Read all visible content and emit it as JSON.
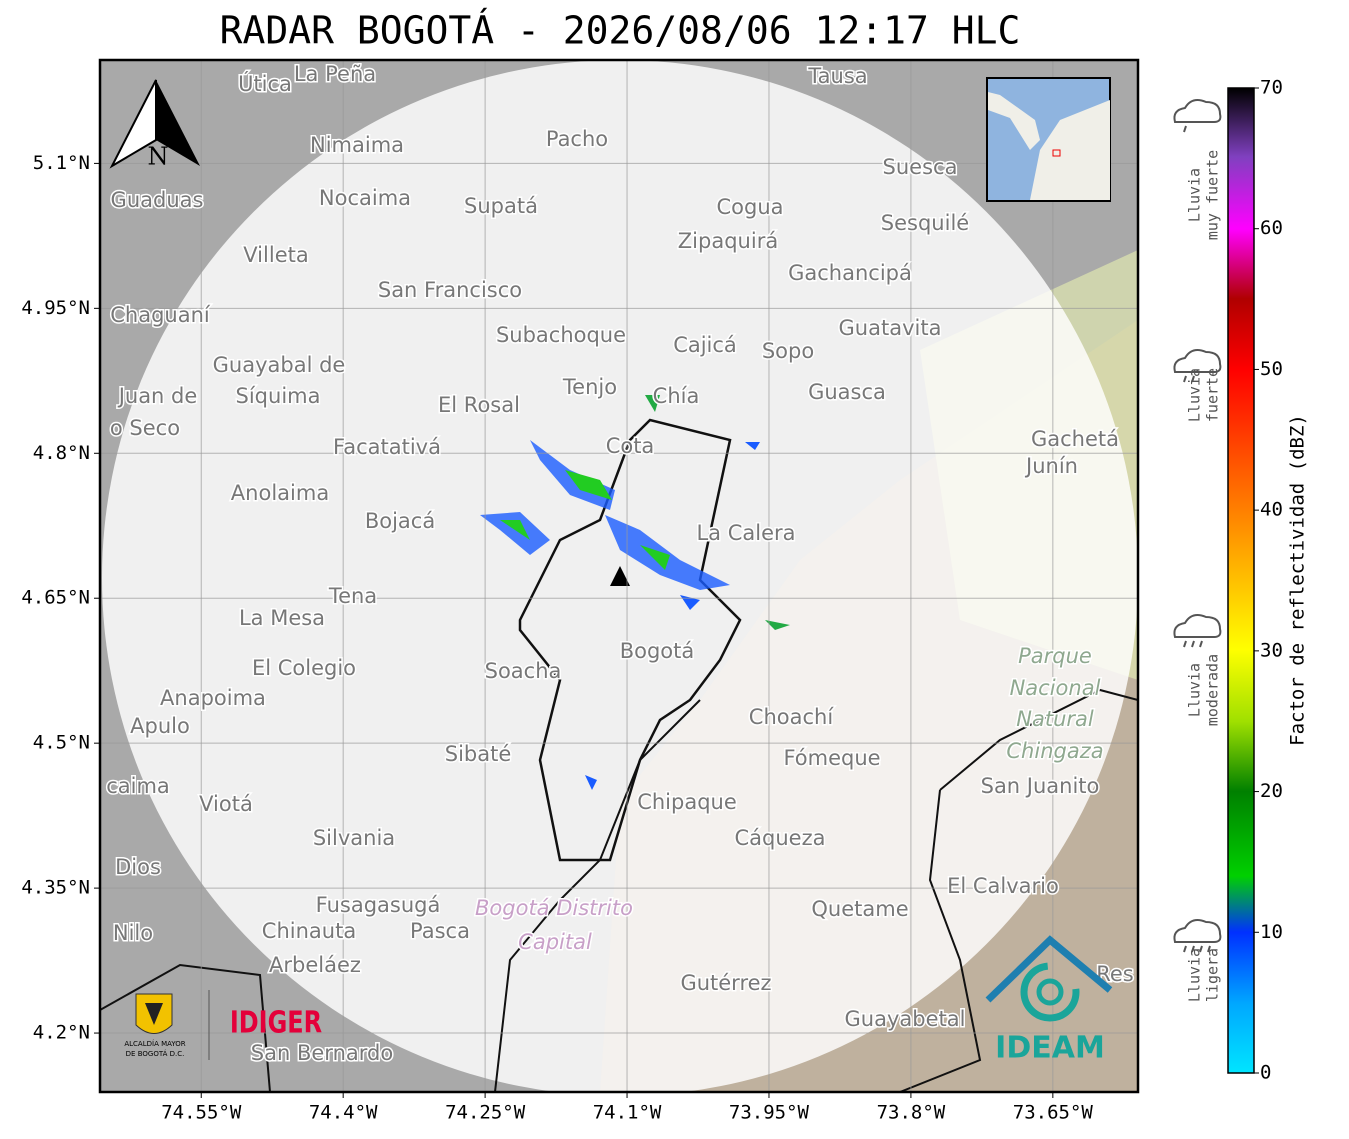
{
  "map": {
    "title": "RADAR BOGOTÁ - 2026/08/06 12:17 HLC",
    "lat_range": [
      4.139,
      5.207
    ],
    "lon_range": [
      -74.657,
      -73.56
    ],
    "lat_ticks": [
      {
        "value": 4.2,
        "label": "4.2°N"
      },
      {
        "value": 4.35,
        "label": "4.35°N"
      },
      {
        "value": 4.5,
        "label": "4.5°N"
      },
      {
        "value": 4.65,
        "label": "4.65°N"
      },
      {
        "value": 4.8,
        "label": "4.8°N"
      },
      {
        "value": 4.95,
        "label": "4.95°N"
      },
      {
        "value": 5.1,
        "label": "5.1°N"
      }
    ],
    "lon_ticks": [
      {
        "value": -74.55,
        "label": "74.55°W"
      },
      {
        "value": -74.4,
        "label": "74.4°W"
      },
      {
        "value": -74.25,
        "label": "74.25°W"
      },
      {
        "value": -74.1,
        "label": "74.1°W"
      },
      {
        "value": -73.95,
        "label": "73.95°W"
      },
      {
        "value": -73.8,
        "label": "73.8°W"
      },
      {
        "value": -73.65,
        "label": "73.65°W"
      }
    ],
    "compass": "N",
    "places": [
      "Útica",
      "La Peña",
      "Tausa",
      "Pacho",
      "Nimaima",
      "Guaduas",
      "Nocaima",
      "Supatá",
      "Cogua",
      "Suesca",
      "Sesquilé",
      "Villeta",
      "Zipaquirá",
      "Gachancipá",
      "San Francisco",
      "Chaguaní",
      "Guatavita",
      "Subachoque",
      "Cajicá",
      "Sopo",
      "Guayabal de",
      "Síquima",
      "Juan de",
      "o Seco",
      "Tenjo",
      "Chía",
      "El Rosal",
      "Guasca",
      "Facatativá",
      "Cota",
      "Gachetá",
      "Junín",
      "Anolaima",
      "Bojacá",
      "La Calera",
      "Tena",
      "La Mesa",
      "Parque",
      "Nacional",
      "Natural",
      "Chingaza",
      "El Colegio",
      "Soacha",
      "Bogotá",
      "Anapoima",
      "Apulo",
      "Choachí",
      "Fómeque",
      "Sibaté",
      "San Juanito",
      "caima",
      "Viotá",
      "Chipaque",
      "Silvania",
      "Cáqueza",
      "Dios",
      "El Calvario",
      "Fusagasugá",
      "Bogotá Distrito",
      "Capital",
      "Quetame",
      "Nilo",
      "Chinauta",
      "Pasca",
      "Arbeláez",
      "Gutérrez",
      "Res",
      "Guayabetal",
      "San Bernardo"
    ],
    "logos": {
      "alcaldia": [
        "ALCALDÍA MAYOR",
        "DE BOGOTÁ D.C."
      ],
      "idiger": "IDIGER",
      "ideam": "IDEAM"
    }
  },
  "colorbar": {
    "label": "Factor de reflectividad (dBZ)",
    "range": [
      0,
      70
    ],
    "ticks": [
      0,
      10,
      20,
      30,
      40,
      50,
      60,
      70
    ],
    "categories": [
      [
        "Lluvia",
        "muy fuerte"
      ],
      [
        "Lluvia",
        "fuerte"
      ],
      [
        "Lluvia",
        "moderada"
      ],
      [
        "Lluvia",
        "ligera"
      ]
    ]
  }
}
